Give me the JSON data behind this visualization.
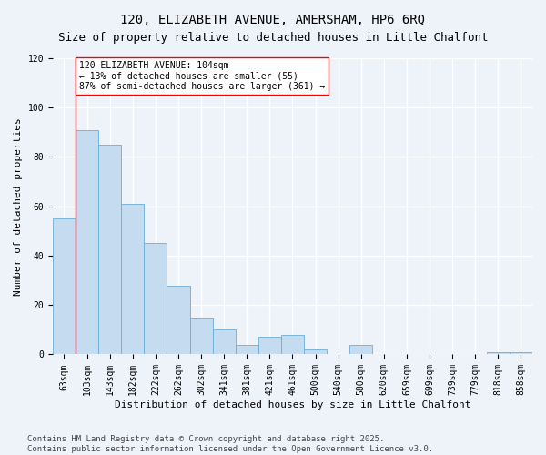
{
  "title_line1": "120, ELIZABETH AVENUE, AMERSHAM, HP6 6RQ",
  "title_line2": "Size of property relative to detached houses in Little Chalfont",
  "xlabel": "Distribution of detached houses by size in Little Chalfont",
  "ylabel": "Number of detached properties",
  "bar_color": "#C5DCF0",
  "bar_edge_color": "#6AAED6",
  "background_color": "#EEF3FA",
  "grid_color": "#FFFFFF",
  "categories": [
    "63sqm",
    "103sqm",
    "143sqm",
    "182sqm",
    "222sqm",
    "262sqm",
    "302sqm",
    "341sqm",
    "381sqm",
    "421sqm",
    "461sqm",
    "500sqm",
    "540sqm",
    "580sqm",
    "620sqm",
    "659sqm",
    "699sqm",
    "739sqm",
    "779sqm",
    "818sqm",
    "858sqm"
  ],
  "values": [
    55,
    91,
    85,
    61,
    45,
    28,
    15,
    10,
    4,
    7,
    8,
    2,
    0,
    4,
    0,
    0,
    0,
    0,
    0,
    1,
    1
  ],
  "annotation_line1": "120 ELIZABETH AVENUE: 104sqm",
  "annotation_line2": "← 13% of detached houses are smaller (55)",
  "annotation_line3": "87% of semi-detached houses are larger (361) →",
  "vline_x": 0.5,
  "ylim": [
    0,
    120
  ],
  "yticks": [
    0,
    20,
    40,
    60,
    80,
    100,
    120
  ],
  "footer_text": "Contains HM Land Registry data © Crown copyright and database right 2025.\nContains public sector information licensed under the Open Government Licence v3.0.",
  "title_fontsize": 10,
  "subtitle_fontsize": 9,
  "axis_label_fontsize": 8,
  "tick_fontsize": 7,
  "annotation_fontsize": 7,
  "footer_fontsize": 6.5
}
